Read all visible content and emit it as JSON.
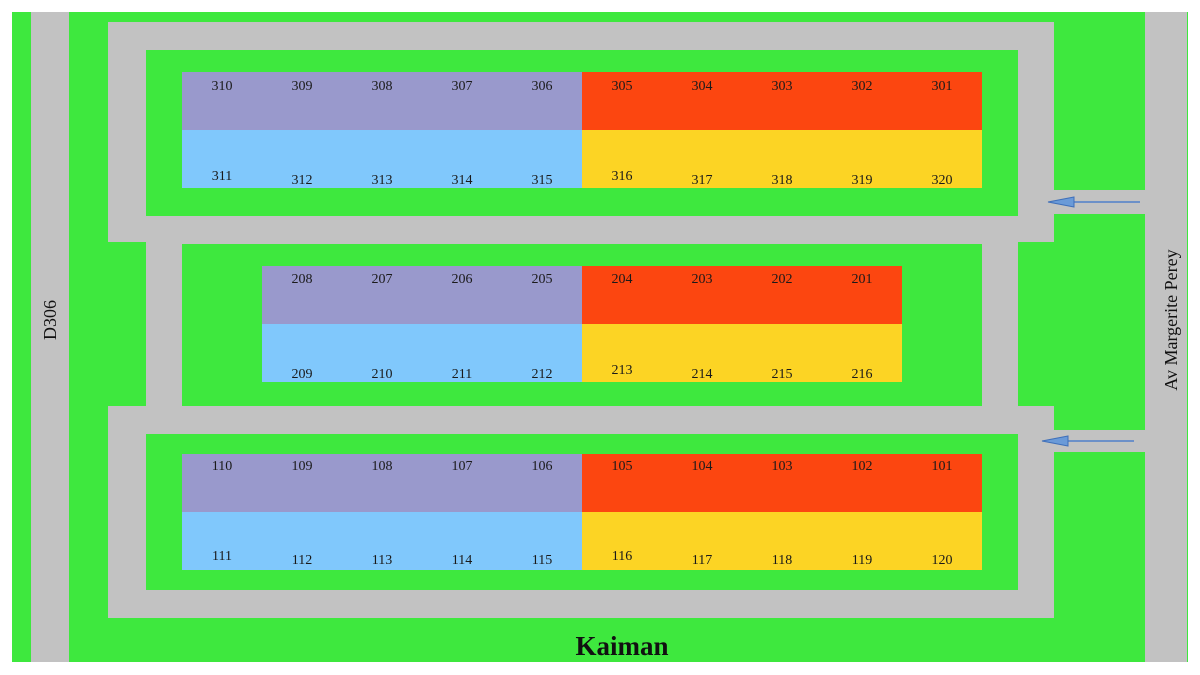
{
  "title": "Kaiman",
  "roads": {
    "left": "D306",
    "right": "Av Margerite Perey"
  },
  "colors": {
    "grass": "#3ee83e",
    "road": "#c2c2c2",
    "lavender": "#9999cc",
    "light_blue": "#80c8fc",
    "red_orange": "#fc4610",
    "yellow": "#fcd424",
    "arrow": "#4f7fc9"
  },
  "rows": [
    {
      "name": "row-300",
      "top_lots": [
        "310",
        "309",
        "308",
        "307",
        "306",
        "305",
        "304",
        "303",
        "302",
        "301"
      ],
      "bottom_lots": [
        "311",
        "312",
        "313",
        "314",
        "315",
        "316",
        "317",
        "318",
        "319",
        "320"
      ]
    },
    {
      "name": "row-200",
      "top_lots": [
        "208",
        "207",
        "206",
        "205",
        "204",
        "203",
        "202",
        "201"
      ],
      "bottom_lots": [
        "209",
        "210",
        "211",
        "212",
        "213",
        "214",
        "215",
        "216"
      ]
    },
    {
      "name": "row-100",
      "top_lots": [
        "110",
        "109",
        "108",
        "107",
        "106",
        "105",
        "104",
        "103",
        "102",
        "101"
      ],
      "bottom_lots": [
        "111",
        "112",
        "113",
        "114",
        "115",
        "116",
        "117",
        "118",
        "119",
        "120"
      ]
    }
  ]
}
